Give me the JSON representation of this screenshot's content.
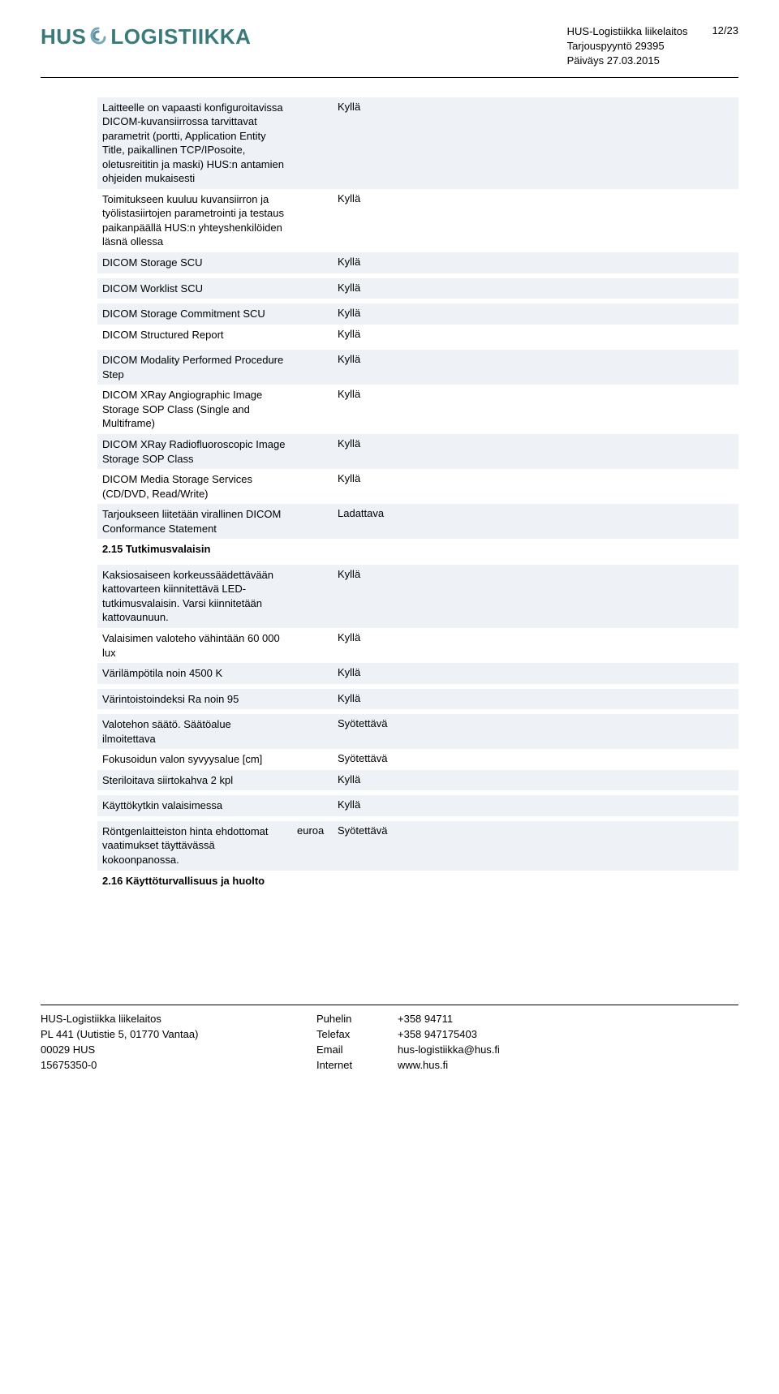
{
  "header": {
    "org": "HUS-Logistiikka liikelaitos",
    "doc": "Tarjouspyyntö 29395",
    "date": "Päiväys 27.03.2015",
    "pagenum": "12/23",
    "logo_text_left": "HUS",
    "logo_text_right": "LOGISTIIKKA"
  },
  "rows": [
    {
      "label": "Laitteelle on vapaasti konfiguroitavissa DICOM-kuvansiirrossa tarvittavat parametrit (portti, Application Entity Title, paikallinen TCP/IPosoite, oletusreititin ja maski) HUS:n antamien ohjeiden mukaisesti",
      "value": "Kyllä",
      "shaded": true
    },
    {
      "label": "Toimitukseen kuuluu kuvansiirron ja työlistasiirtojen parametrointi ja testaus paikanpäällä HUS:n yhteyshenkilöiden läsnä ollessa",
      "value": "Kyllä",
      "shaded": false
    },
    {
      "label": "DICOM Storage SCU",
      "value": "Kyllä",
      "shaded": true
    },
    {
      "spacer": true
    },
    {
      "label": "DICOM Worklist SCU",
      "value": "Kyllä",
      "shaded": true
    },
    {
      "spacer": true
    },
    {
      "label": "DICOM Storage Commitment SCU",
      "value": "Kyllä",
      "shaded": true
    },
    {
      "label": "DICOM Structured Report",
      "value": "Kyllä",
      "shaded": false
    },
    {
      "spacer": true
    },
    {
      "label": "DICOM Modality Performed Procedure Step",
      "value": "Kyllä",
      "shaded": true
    },
    {
      "label": "DICOM XRay Angiographic Image Storage SOP Class (Single and Multiframe)",
      "value": "Kyllä",
      "shaded": false
    },
    {
      "label": "DICOM XRay Radiofluoroscopic Image Storage SOP Class",
      "value": "Kyllä",
      "shaded": true
    },
    {
      "label": "DICOM Media Storage Services (CD/DVD, Read/Write)",
      "value": "Kyllä",
      "shaded": false
    },
    {
      "label": "Tarjoukseen liitetään virallinen DICOM Conformance Statement",
      "value": "Ladattava",
      "shaded": true
    },
    {
      "label": "2.15 Tutkimusvalaisin",
      "value": "",
      "shaded": false,
      "section": true
    },
    {
      "spacer": true
    },
    {
      "label": "Kaksiosaiseen korkeussäädettävään kattovarteen kiinnitettävä LED-tutkimusvalaisin. Varsi kiinnitetään kattovaunuun.",
      "value": "Kyllä",
      "shaded": true
    },
    {
      "label": "Valaisimen valoteho vähintään 60 000 lux",
      "value": "Kyllä",
      "shaded": false
    },
    {
      "label": "Värilämpötila noin 4500 K",
      "value": "Kyllä",
      "shaded": true
    },
    {
      "spacer": true
    },
    {
      "label": "Värintoistoindeksi Ra noin 95",
      "value": "Kyllä",
      "shaded": true
    },
    {
      "spacer": true
    },
    {
      "label": "Valotehon säätö. Säätöalue ilmoitettava",
      "value": "Syötettävä",
      "shaded": true
    },
    {
      "label": "Fokusoidun valon syvyysalue [cm]",
      "value": "Syötettävä",
      "shaded": false
    },
    {
      "label": "Steriloitava siirtokahva 2 kpl",
      "value": "Kyllä",
      "shaded": true
    },
    {
      "spacer": true
    },
    {
      "label": "Käyttökytkin valaisimessa",
      "value": "Kyllä",
      "shaded": true
    },
    {
      "spacer": true
    },
    {
      "label": "Röntgenlaitteiston hinta ehdottomat vaatimukset täyttävässä kokoonpanossa.",
      "unit": "euroa",
      "value": "Syötettävä",
      "shaded": true
    },
    {
      "label": "2.16 Käyttöturvallisuus ja huolto",
      "value": "",
      "shaded": false,
      "section": true
    }
  ],
  "footer": {
    "col1": [
      "HUS-Logistiikka liikelaitos",
      "PL 441 (Uutistie 5, 01770 Vantaa)",
      "00029 HUS",
      "15675350-0"
    ],
    "col2": [
      "Puhelin",
      "Telefax",
      "Email",
      "Internet"
    ],
    "col3": [
      "+358 94711",
      "+358 947175403",
      "hus-logistiikka@hus.fi",
      "www.hus.fi"
    ]
  },
  "colors": {
    "shaded_bg": "#eef1f5",
    "logo_color": "#3a7a7a",
    "text": "#000000",
    "rule": "#000000"
  }
}
